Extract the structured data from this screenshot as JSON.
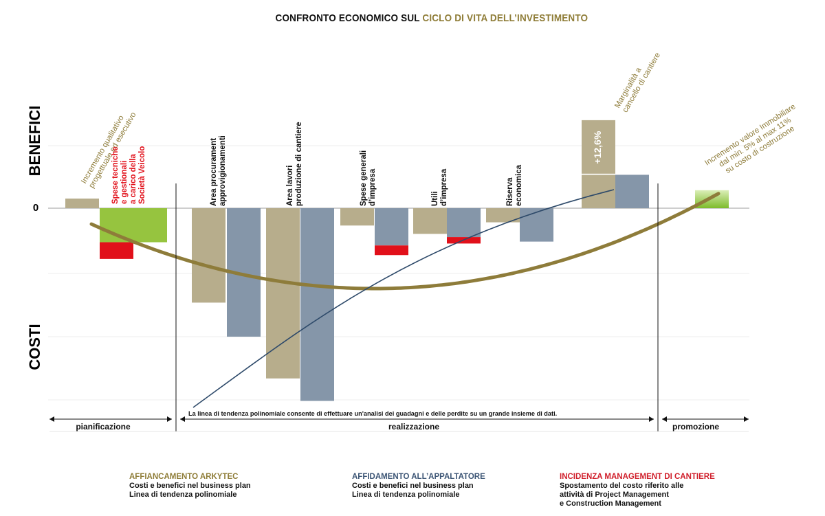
{
  "title": {
    "part1": "CONFRONTO ECONOMICO SUL ",
    "part2": "CICLO DI VITA DELL’INVESTIMENTO"
  },
  "colors": {
    "khaki": "#b7ad8c",
    "slate": "#8596a9",
    "red": "#e1101a",
    "green": "#96c43f",
    "curve_gold": "#8e7c3a",
    "trend_blue": "#2e4a6a",
    "head_gold": "#8f7d38",
    "head_blue": "#3c5575",
    "head_red": "#d0202c"
  },
  "chart_data": {
    "type": "bar",
    "y_axis": {
      "top_label": "BENEFICI",
      "bottom_label": "COSTI",
      "zero_label": "0"
    },
    "groups": [
      {
        "name": "pianificazione",
        "label": [
          "Incremento qualitativo",
          "progettuale ed esecutivo"
        ],
        "label_color": "gold",
        "label_rotation": -60,
        "bars": [
          {
            "series": "khaki",
            "value": 1.5
          }
        ]
      },
      {
        "name": "pianificazione",
        "label": [
          "Spese tecniche",
          "e gestionali",
          "a carico della",
          "Società Veicolo"
        ],
        "label_color": "red",
        "label_rotation": -90,
        "bars": [
          {
            "series": "green",
            "value": -5.3,
            "extra_red": -2.6
          },
          {
            "series": "green",
            "value": -5.3
          }
        ]
      },
      {
        "name": "realizzazione",
        "label": [
          "Area procurament",
          "approvigionamenti"
        ],
        "label_color": "black",
        "label_rotation": -90,
        "bars": [
          {
            "series": "khaki",
            "value": -14.7
          },
          {
            "series": "slate",
            "value": -20.0
          }
        ]
      },
      {
        "name": "realizzazione",
        "label": [
          "Area lavori",
          "produzione di cantiere"
        ],
        "label_color": "black",
        "label_rotation": -90,
        "bars": [
          {
            "series": "khaki",
            "value": -26.5
          },
          {
            "series": "slate",
            "value": -30.0
          }
        ]
      },
      {
        "name": "realizzazione",
        "label": [
          "Spese generali",
          "d’impresa"
        ],
        "label_color": "black",
        "label_rotation": -90,
        "bars": [
          {
            "series": "khaki",
            "value": -2.7
          },
          {
            "series": "slate",
            "value": -5.8,
            "extra_red": -1.5
          }
        ]
      },
      {
        "name": "realizzazione",
        "label": [
          "Utili",
          "d’impresa"
        ],
        "label_color": "black",
        "label_rotation": -90,
        "bars": [
          {
            "series": "khaki",
            "value": -4.0
          },
          {
            "series": "slate",
            "value": -4.5,
            "extra_red": -1.0
          }
        ]
      },
      {
        "name": "realizzazione",
        "label": [
          "Riserva",
          "economica"
        ],
        "label_color": "black",
        "label_rotation": -90,
        "bars": [
          {
            "series": "khaki",
            "value": -2.2
          },
          {
            "series": "slate",
            "value": -5.2
          }
        ]
      },
      {
        "name": "realizzazione",
        "label": [
          "Marginalità a",
          "cancello di cantiere"
        ],
        "label_color": "gold",
        "label_rotation": -60,
        "bars": [
          {
            "series": "khaki",
            "value": 5.2,
            "stacked_top": 8.5,
            "stacked_label": "+12,6%"
          },
          {
            "series": "slate",
            "value": 5.2
          }
        ]
      },
      {
        "name": "promozione",
        "label": [
          "Incremento valore Immobiliare",
          "dal min. 5% al max 11%",
          "su costo di costruzione"
        ],
        "label_color": "gold",
        "label_rotation": -33,
        "bars": [
          {
            "series": "green_gradient",
            "value": 2.8
          }
        ]
      }
    ],
    "phases": [
      "pianificazione",
      "realizzazione",
      "promozione"
    ],
    "trend_note": "La linea di tendenza polinomiale consente di effettuare un'analisi dei guadagni e delle perdite su un grande insieme di dati.",
    "curves": [
      {
        "name": "Linea di tendenza polinomiale (Arkytec)",
        "color": "curve_gold"
      },
      {
        "name": "Linea di tendenza polinomiale (Appaltatore)",
        "color": "trend_blue"
      }
    ]
  },
  "legend": [
    {
      "head": "AFFIANCAMENTO ARKYTEC",
      "color": "head_gold",
      "lines": [
        "Costi e benefici nel business plan",
        "Linea di tendenza polinomiale"
      ]
    },
    {
      "head": "AFFIDAMENTO ALL’APPALTATORE",
      "color": "head_blue",
      "lines": [
        "Costi e benefici nel business plan",
        "Linea di tendenza polinomiale"
      ]
    },
    {
      "head": "INCIDENZA MANAGEMENT DI CANTIERE",
      "color": "head_red",
      "lines": [
        "Spostamento del costo riferito alle",
        "attività di Project Management",
        "e Construction Management"
      ]
    }
  ]
}
